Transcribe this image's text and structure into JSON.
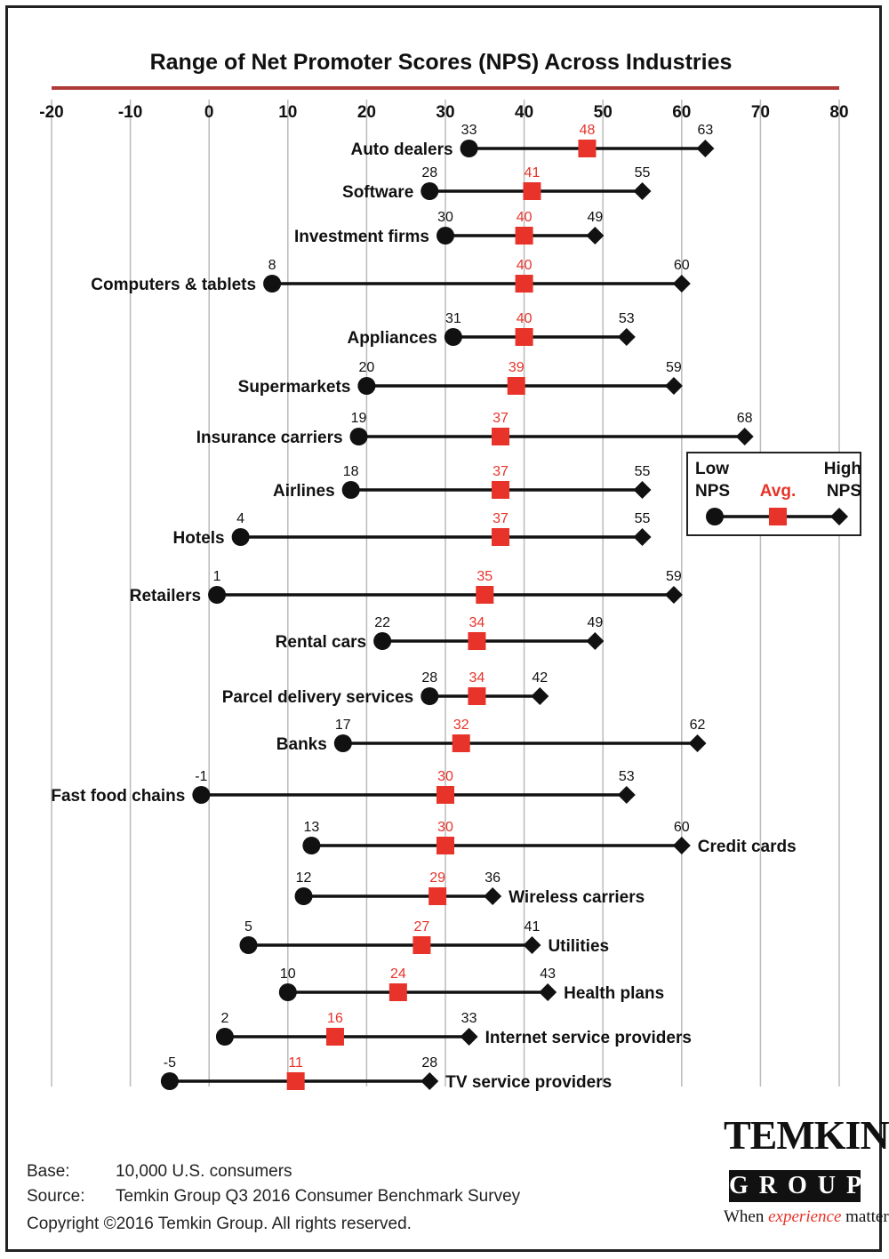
{
  "chart_data": {
    "type": "range-dot",
    "title": "Range of Net Promoter Scores (NPS) Across Industries",
    "x_ticks": [
      -20,
      -10,
      0,
      10,
      20,
      30,
      40,
      50,
      60,
      70,
      80
    ],
    "xlim": [
      -20,
      80
    ],
    "grid": "vertical",
    "colors": {
      "avg": "#e8332a",
      "range": "#111111",
      "title_rule": "#b03a3a"
    },
    "industries": [
      {
        "name": "Auto dealers",
        "low": 33,
        "avg": 48,
        "high": 63
      },
      {
        "name": "Software",
        "low": 28,
        "avg": 41,
        "high": 55
      },
      {
        "name": "Investment firms",
        "low": 30,
        "avg": 40,
        "high": 49
      },
      {
        "name": "Computers & tablets",
        "low": 8,
        "avg": 40,
        "high": 60
      },
      {
        "name": "Appliances",
        "low": 31,
        "avg": 40,
        "high": 53
      },
      {
        "name": "Supermarkets",
        "low": 20,
        "avg": 39,
        "high": 59
      },
      {
        "name": "Insurance carriers",
        "low": 19,
        "avg": 37,
        "high": 68
      },
      {
        "name": "Airlines",
        "low": 18,
        "avg": 37,
        "high": 55
      },
      {
        "name": "Hotels",
        "low": 4,
        "avg": 37,
        "high": 55
      },
      {
        "name": "Retailers",
        "low": 1,
        "avg": 35,
        "high": 59
      },
      {
        "name": "Rental cars",
        "low": 22,
        "avg": 34,
        "high": 49
      },
      {
        "name": "Parcel delivery services",
        "low": 28,
        "avg": 34,
        "high": 42
      },
      {
        "name": "Banks",
        "low": 17,
        "avg": 32,
        "high": 62
      },
      {
        "name": "Fast food chains",
        "low": -1,
        "avg": 30,
        "high": 53
      },
      {
        "name": "Credit cards",
        "low": 13,
        "avg": 30,
        "high": 60
      },
      {
        "name": "Wireless carriers",
        "low": 12,
        "avg": 29,
        "high": 36
      },
      {
        "name": "Utilities",
        "low": 5,
        "avg": 27,
        "high": 41
      },
      {
        "name": "Health plans",
        "low": 10,
        "avg": 24,
        "high": 43
      },
      {
        "name": "Internet service providers",
        "low": 2,
        "avg": 16,
        "high": 33
      },
      {
        "name": "TV service providers",
        "low": -5,
        "avg": 11,
        "high": 28
      }
    ],
    "legend": {
      "low": [
        "Low",
        "NPS"
      ],
      "avg": "Avg.",
      "high": [
        "High",
        "NPS"
      ]
    }
  },
  "footer": {
    "base_label": "Base:",
    "base_value": "10,000 U.S. consumers",
    "source_label": "Source:",
    "source_value": "Temkin Group Q3 2016 Consumer Benchmark Survey",
    "copyright": "Copyright ©2016 Temkin Group. All rights reserved."
  },
  "logo": {
    "name": "TEMKIN",
    "group": "GROUP",
    "tagline_pre": "When",
    "tagline_accent": "experience",
    "tagline_post": "matters"
  }
}
